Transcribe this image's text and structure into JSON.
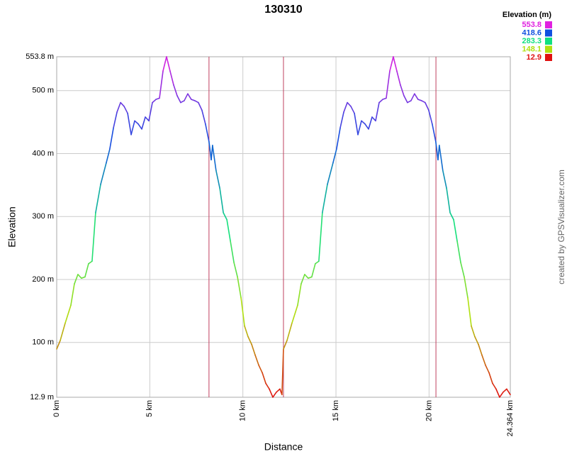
{
  "chart_data": {
    "type": "line",
    "title": "130310",
    "x_label": "Distance",
    "y_label": "Elevation",
    "credit": "created by GPSVisualizer.com",
    "legend_title": "Elevation (m)",
    "legend": [
      {
        "value": 553.8,
        "color": "#e020e0"
      },
      {
        "value": 418.6,
        "color": "#1050e0"
      },
      {
        "value": 283.3,
        "color": "#10e080"
      },
      {
        "value": 148.1,
        "color": "#b0e010"
      },
      {
        "value": 12.9,
        "color": "#e01010"
      }
    ],
    "x": [
      0,
      0.19,
      0.46,
      0.76,
      0.95,
      1.14,
      1.33,
      1.52,
      1.71,
      1.9,
      2.09,
      2.36,
      2.66,
      2.85,
      3.05,
      3.24,
      3.43,
      3.62,
      3.81,
      4.0,
      4.19,
      4.38,
      4.57,
      4.76,
      4.95,
      5.14,
      5.33,
      5.52,
      5.71,
      5.9,
      6.09,
      6.28,
      6.47,
      6.66,
      6.85,
      7.04,
      7.23,
      7.42,
      7.61,
      7.8,
      7.99,
      8.18,
      8.3,
      8.37,
      8.56,
      8.76,
      8.95,
      9.14,
      9.33,
      9.52,
      9.71,
      9.9,
      10.09,
      10.28,
      10.47,
      10.66,
      10.85,
      11.04,
      11.23,
      11.42,
      11.61,
      11.8,
      11.99,
      12.1,
      12.18,
      12.37,
      12.64,
      12.94,
      13.13,
      13.32,
      13.51,
      13.7,
      13.89,
      14.08,
      14.27,
      14.54,
      14.84,
      15.03,
      15.23,
      15.42,
      15.61,
      15.8,
      15.99,
      16.18,
      16.37,
      16.56,
      16.75,
      16.94,
      17.13,
      17.32,
      17.51,
      17.7,
      17.89,
      18.08,
      18.27,
      18.46,
      18.65,
      18.84,
      19.03,
      19.22,
      19.41,
      19.6,
      19.79,
      19.98,
      20.17,
      20.36,
      20.48,
      20.55,
      20.74,
      20.94,
      21.13,
      21.32,
      21.51,
      21.7,
      21.89,
      22.08,
      22.27,
      22.46,
      22.65,
      22.84,
      23.03,
      23.22,
      23.41,
      23.6,
      23.79,
      23.98,
      24.17,
      24.364
    ],
    "values": [
      89.5,
      103,
      131,
      159,
      193,
      208,
      202,
      204,
      225,
      229,
      306,
      351,
      385,
      407,
      441,
      466,
      481,
      475,
      464,
      430,
      452,
      447,
      439,
      458,
      452,
      481,
      486,
      488,
      531,
      553.8,
      531,
      509,
      492,
      481,
      484,
      495,
      486,
      484,
      481,
      469,
      447,
      419,
      390,
      413,
      373,
      345,
      306,
      295,
      261,
      227,
      204,
      171,
      126,
      109,
      97,
      80,
      64,
      52,
      35,
      26,
      13,
      21,
      26,
      17,
      89.5,
      103,
      131,
      159,
      193,
      208,
      202,
      204,
      225,
      229,
      306,
      351,
      385,
      407,
      441,
      466,
      481,
      475,
      464,
      430,
      452,
      447,
      439,
      458,
      452,
      481,
      486,
      488,
      531,
      553.8,
      531,
      509,
      492,
      481,
      484,
      495,
      486,
      484,
      481,
      469,
      447,
      419,
      390,
      413,
      373,
      345,
      306,
      295,
      261,
      227,
      204,
      171,
      126,
      109,
      97,
      80,
      64,
      52,
      35,
      26,
      13,
      21,
      26,
      17
    ],
    "vlines": [
      8.18,
      12.18,
      20.37
    ],
    "vline_color": "#c04060",
    "xlim": [
      0,
      24.364
    ],
    "xticks": [
      {
        "value": 0,
        "label": "0 km"
      },
      {
        "value": 5,
        "label": "5 km"
      },
      {
        "value": 10,
        "label": "10 km"
      },
      {
        "value": 15,
        "label": "15 km"
      },
      {
        "value": 20,
        "label": "20 km"
      },
      {
        "value": 24.364,
        "label": "24.364 km"
      }
    ],
    "ylim": [
      12.9,
      553.8
    ],
    "yticks": [
      {
        "value": 12.9,
        "label": "12.9 m"
      },
      {
        "value": 100,
        "label": "100 m"
      },
      {
        "value": 200,
        "label": "200 m"
      },
      {
        "value": 300,
        "label": "300 m"
      },
      {
        "value": 400,
        "label": "400 m"
      },
      {
        "value": 500,
        "label": "500 m"
      },
      {
        "value": 553.8,
        "label": "553.8 m"
      }
    ],
    "grid": true
  }
}
